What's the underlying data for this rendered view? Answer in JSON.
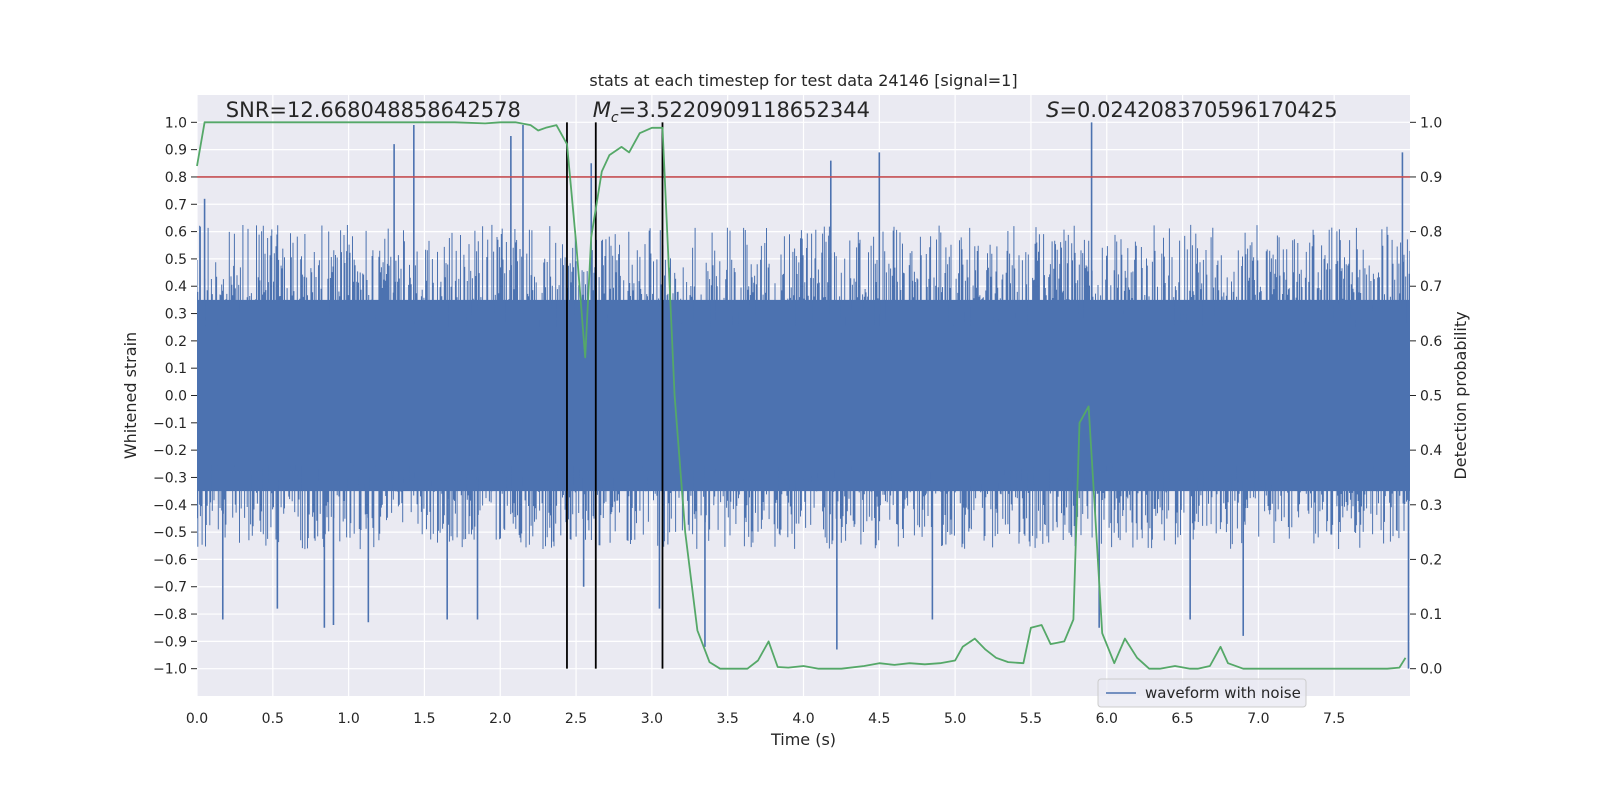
{
  "chart_data": {
    "type": "line",
    "title": "stats at each timestep for test data 24146 [signal=1]",
    "xlabel": "Time (s)",
    "ylabel": "Whitened strain",
    "y2label": "Detection probability",
    "xlim": [
      0.0,
      8.0
    ],
    "ylim": [
      -1.1,
      1.1
    ],
    "y2lim": [
      -0.05,
      1.05
    ],
    "xticks": [
      0.0,
      0.5,
      1.0,
      1.5,
      2.0,
      2.5,
      3.0,
      3.5,
      4.0,
      4.5,
      5.0,
      5.5,
      6.0,
      6.5,
      7.0,
      7.5
    ],
    "yticks": [
      -1.0,
      -0.9,
      -0.8,
      -0.7,
      -0.6,
      -0.5,
      -0.4,
      -0.3,
      -0.2,
      -0.1,
      0.0,
      0.1,
      0.2,
      0.3,
      0.4,
      0.5,
      0.6,
      0.7,
      0.8,
      0.9,
      1.0
    ],
    "y2ticks": [
      0.0,
      0.1,
      0.2,
      0.3,
      0.4,
      0.5,
      0.6,
      0.7,
      0.8,
      0.9,
      1.0
    ],
    "grid": true,
    "legend": {
      "entries": [
        "waveform with noise"
      ],
      "location": "lower-right"
    },
    "annotations": {
      "snr": "SNR=12.668048858642578",
      "mc_symbol": "M",
      "mc_sub": "c",
      "mc_value": "=3.5220909118652344",
      "s_symbol": "S",
      "s_value": "=0.024208370596170425"
    },
    "waveform": {
      "name": "waveform with noise",
      "color": "#4c72b0",
      "core_band": [
        -0.35,
        0.35
      ],
      "typical_envelope": [
        -0.5,
        0.55
      ],
      "peaks": [
        {
          "t": 0.05,
          "v": 0.72
        },
        {
          "t": 0.17,
          "v": -0.82
        },
        {
          "t": 0.53,
          "v": -0.78
        },
        {
          "t": 0.84,
          "v": -0.85
        },
        {
          "t": 0.9,
          "v": -0.84
        },
        {
          "t": 1.13,
          "v": -0.83
        },
        {
          "t": 1.3,
          "v": 0.92
        },
        {
          "t": 1.43,
          "v": 0.99
        },
        {
          "t": 1.65,
          "v": -0.82
        },
        {
          "t": 1.85,
          "v": -0.82
        },
        {
          "t": 2.07,
          "v": 0.95
        },
        {
          "t": 2.15,
          "v": 0.99
        },
        {
          "t": 2.55,
          "v": -0.7
        },
        {
          "t": 2.6,
          "v": 0.85
        },
        {
          "t": 3.05,
          "v": -0.78
        },
        {
          "t": 3.35,
          "v": -0.92
        },
        {
          "t": 4.18,
          "v": 0.86
        },
        {
          "t": 4.22,
          "v": -0.93
        },
        {
          "t": 4.5,
          "v": 0.89
        },
        {
          "t": 4.85,
          "v": -0.82
        },
        {
          "t": 5.9,
          "v": 1.0
        },
        {
          "t": 5.95,
          "v": -0.85
        },
        {
          "t": 6.55,
          "v": -0.82
        },
        {
          "t": 6.9,
          "v": -0.88
        },
        {
          "t": 7.95,
          "v": 0.89
        },
        {
          "t": 7.99,
          "v": -1.0
        }
      ]
    },
    "threshold": {
      "value": 0.8,
      "color": "#c44e52"
    },
    "vlines": [
      2.44,
      2.63,
      3.07
    ],
    "probability": {
      "color": "#55a868",
      "t": [
        0.0,
        0.05,
        0.1,
        0.3,
        0.6,
        1.0,
        1.15,
        1.3,
        1.5,
        1.7,
        1.9,
        2.0,
        2.1,
        2.2,
        2.25,
        2.3,
        2.37,
        2.44,
        2.5,
        2.56,
        2.6,
        2.67,
        2.72,
        2.8,
        2.85,
        2.92,
        3.0,
        3.07,
        3.15,
        3.22,
        3.3,
        3.38,
        3.45,
        3.55,
        3.63,
        3.7,
        3.77,
        3.83,
        3.9,
        4.0,
        4.1,
        4.25,
        4.4,
        4.5,
        4.6,
        4.7,
        4.8,
        4.9,
        5.0,
        5.05,
        5.13,
        5.2,
        5.27,
        5.35,
        5.45,
        5.5,
        5.57,
        5.63,
        5.72,
        5.78,
        5.82,
        5.88,
        5.92,
        5.97,
        6.05,
        6.12,
        6.2,
        6.28,
        6.35,
        6.45,
        6.55,
        6.6,
        6.68,
        6.75,
        6.8,
        6.9,
        7.0,
        7.1,
        7.3,
        7.5,
        7.7,
        7.85,
        7.93,
        7.97
      ],
      "p": [
        0.92,
        1.0,
        1.0,
        1.0,
        1.0,
        1.0,
        1.0,
        1.0,
        1.0,
        1.0,
        0.998,
        1.0,
        1.0,
        0.995,
        0.985,
        0.99,
        0.995,
        0.96,
        0.78,
        0.57,
        0.79,
        0.91,
        0.94,
        0.955,
        0.945,
        0.98,
        0.99,
        0.99,
        0.5,
        0.25,
        0.07,
        0.012,
        0.0,
        0.0,
        0.0,
        0.015,
        0.05,
        0.003,
        0.002,
        0.005,
        0.0,
        0.0,
        0.005,
        0.01,
        0.007,
        0.01,
        0.008,
        0.01,
        0.015,
        0.04,
        0.055,
        0.035,
        0.02,
        0.012,
        0.01,
        0.075,
        0.08,
        0.045,
        0.05,
        0.09,
        0.45,
        0.48,
        0.3,
        0.065,
        0.01,
        0.055,
        0.02,
        0.0,
        0.0,
        0.005,
        0.0,
        0.0,
        0.005,
        0.04,
        0.01,
        0.0,
        0.0,
        0.0,
        0.0,
        0.0,
        0.0,
        0.0,
        0.002,
        0.02
      ]
    }
  }
}
